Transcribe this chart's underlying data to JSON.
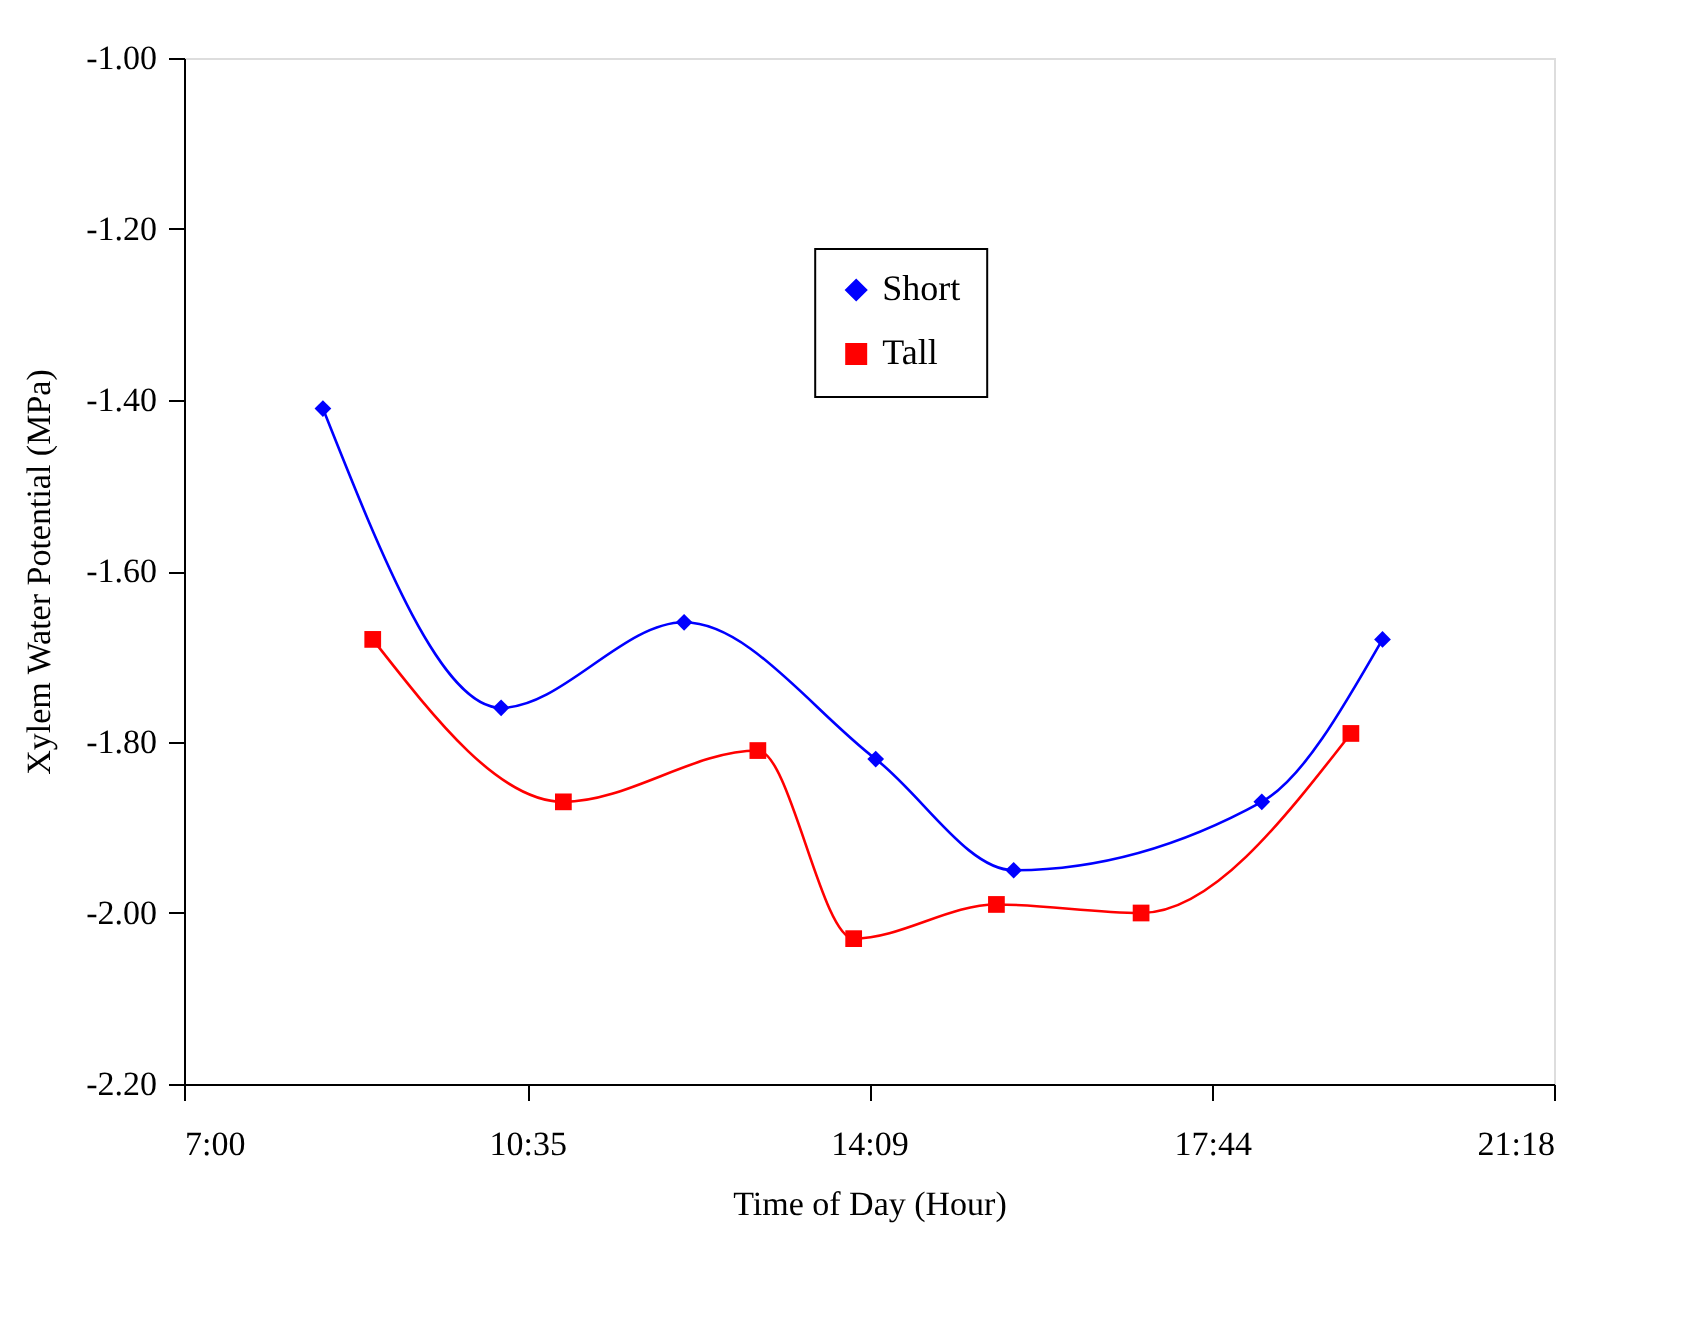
{
  "chart_data": {
    "type": "line",
    "xlabel": "Time of Day (Hour)",
    "ylabel": "Xylem Water Potential (MPa)",
    "xlim": [
      7,
      21.3
    ],
    "xticks": [
      {
        "value": 7,
        "label": "7:00"
      },
      {
        "value": 10.5833,
        "label": "10:35"
      },
      {
        "value": 14.15,
        "label": "14:09"
      },
      {
        "value": 17.7333,
        "label": "17:44"
      },
      {
        "value": 21.3,
        "label": "21:18"
      }
    ],
    "ylim": [
      -2.2,
      -1.0
    ],
    "yticks": [
      {
        "value": -2.2,
        "label": "-2.20"
      },
      {
        "value": -2.0,
        "label": "-2.00"
      },
      {
        "value": -1.8,
        "label": "-1.80"
      },
      {
        "value": -1.6,
        "label": "-1.60"
      },
      {
        "value": -1.4,
        "label": "-1.40"
      },
      {
        "value": -1.2,
        "label": "-1.20"
      },
      {
        "value": -1.0,
        "label": "-1.00"
      }
    ],
    "grid": false,
    "legend": "top",
    "line_style": "solid",
    "series": [
      {
        "name": "Short",
        "color": "#0000ff",
        "marker": "diamond",
        "x": [
          8.45,
          10.31,
          12.22,
          14.22,
          15.66,
          18.25,
          19.51
        ],
        "values": [
          -1.41,
          -1.76,
          -1.66,
          -1.82,
          -1.95,
          -1.87,
          -1.68
        ]
      },
      {
        "name": "Tall",
        "color": "#ff0000",
        "marker": "square",
        "x": [
          8.97,
          10.96,
          12.99,
          13.99,
          15.48,
          16.99,
          19.18
        ],
        "values": [
          -1.68,
          -1.87,
          -1.81,
          -2.03,
          -1.99,
          -2.0,
          -1.79
        ]
      }
    ]
  }
}
